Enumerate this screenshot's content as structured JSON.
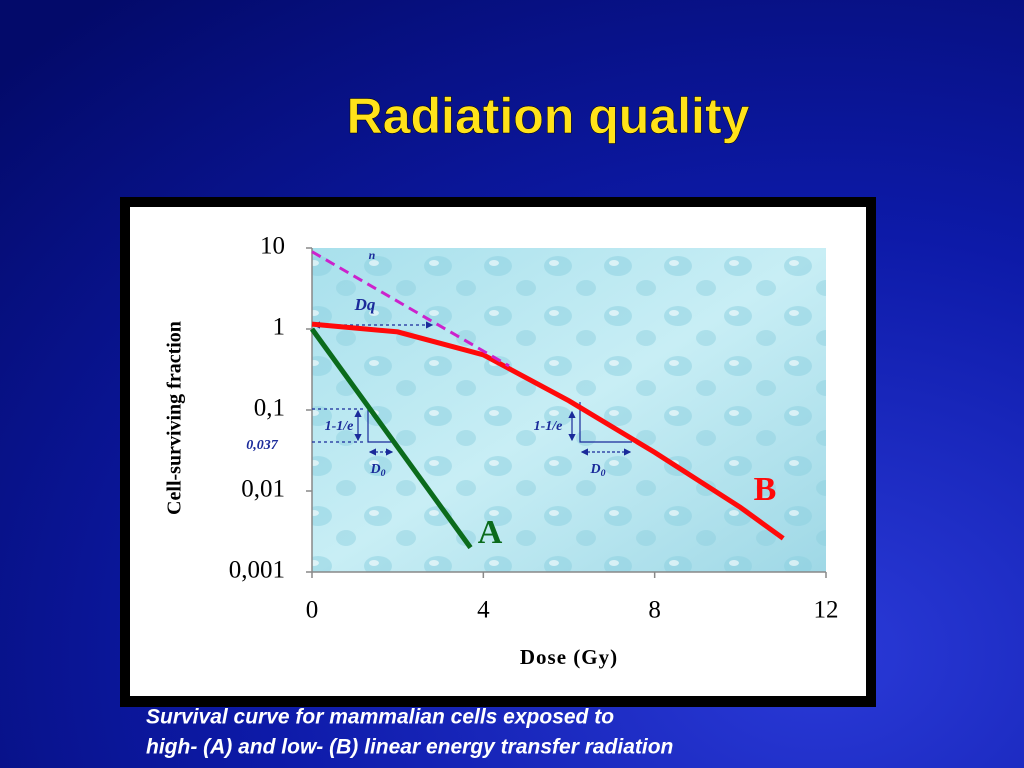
{
  "chart_data": {
    "type": "line",
    "title": "Radiation quality",
    "x_label": "Dose (Gy)",
    "y_label": "Cell-surviving fraction",
    "xlim": [
      0,
      12
    ],
    "xticks": [
      0,
      4,
      8,
      12
    ],
    "ylim": [
      0.001,
      10
    ],
    "yticks": [
      10,
      1,
      {
        "value": 0.1,
        "label": "0,1"
      },
      {
        "value": 0.01,
        "label": "0,01"
      },
      {
        "value": 0.001,
        "label": "0,001"
      }
    ],
    "log_y": true,
    "grid": false,
    "series": [
      {
        "name": "A",
        "color": "#0b6b1c",
        "x": [
          0,
          3.7
        ],
        "values": [
          1,
          0.002
        ]
      },
      {
        "name": "B",
        "color": "#ff0a0a",
        "x": [
          0,
          2,
          4,
          6,
          8,
          10,
          11
        ],
        "values": [
          1.15,
          0.92,
          0.48,
          0.13,
          0.03,
          0.0063,
          0.0026
        ]
      },
      {
        "color": "#cc22cc",
        "dashed": true,
        "x": [
          0,
          4.6
        ],
        "values": [
          9,
          0.35
        ]
      }
    ],
    "annotations": [
      "n",
      "Dq",
      "1-1/e",
      "1-1/e",
      "0,037",
      {
        "text": "D",
        "sub": "0"
      },
      {
        "text": "D",
        "sub": "0"
      }
    ],
    "caption": [
      "Survival curve for mammalian cells exposed to",
      "high- (A) and low- (B) linear energy transfer radiation"
    ]
  }
}
